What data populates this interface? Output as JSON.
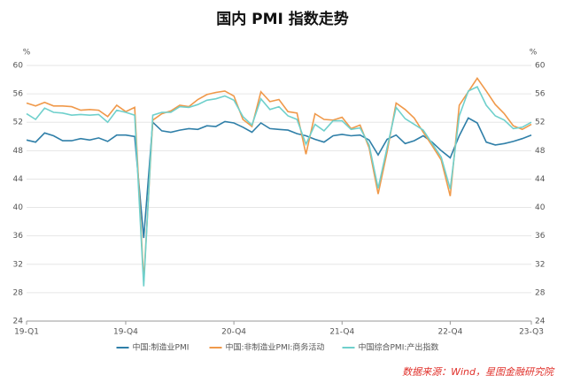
{
  "chart_data": {
    "type": "line",
    "title": "国内 PMI 指数走势",
    "y_unit": "%",
    "y2_unit": "%",
    "source": "数据来源：Wind，星图金融研究院",
    "categories": [
      "19-Q1",
      null,
      null,
      null,
      null,
      null,
      null,
      null,
      null,
      null,
      null,
      "19-Q4",
      null,
      null,
      null,
      null,
      null,
      null,
      null,
      null,
      null,
      null,
      null,
      "20-Q4",
      null,
      null,
      null,
      null,
      null,
      null,
      null,
      null,
      null,
      null,
      null,
      "21-Q4",
      null,
      null,
      null,
      null,
      null,
      null,
      null,
      null,
      null,
      null,
      null,
      "22-Q4",
      null,
      null,
      null,
      null,
      null,
      null,
      null,
      null,
      "23-Q3"
    ],
    "series": [
      {
        "name": "中国:制造业PMI",
        "color": "#2f7fa8",
        "values": [
          49.5,
          49.2,
          50.5,
          50.1,
          49.4,
          49.4,
          49.7,
          49.5,
          49.8,
          49.3,
          50.2,
          50.2,
          50.0,
          35.7,
          52.0,
          50.8,
          50.6,
          50.9,
          51.1,
          51.0,
          51.5,
          51.4,
          52.1,
          51.9,
          51.3,
          50.6,
          51.9,
          51.1,
          51.0,
          50.9,
          50.4,
          50.1,
          49.6,
          49.2,
          50.1,
          50.3,
          50.1,
          50.2,
          49.5,
          47.4,
          49.6,
          50.2,
          49.0,
          49.4,
          50.1,
          49.2,
          48.0,
          47.0,
          50.1,
          52.6,
          51.9,
          49.2,
          48.8,
          49.0,
          49.3,
          49.7,
          50.2
        ]
      },
      {
        "name": "中国:非制造业PMI:商务活动",
        "color": "#f0994a",
        "values": [
          54.7,
          54.3,
          54.8,
          54.3,
          54.3,
          54.2,
          53.7,
          53.8,
          53.7,
          52.8,
          54.4,
          53.5,
          54.1,
          29.6,
          52.3,
          53.2,
          53.6,
          54.4,
          54.2,
          55.2,
          55.9,
          56.2,
          56.4,
          55.7,
          52.4,
          51.4,
          56.3,
          54.9,
          55.2,
          53.5,
          53.3,
          47.5,
          53.2,
          52.4,
          52.3,
          52.7,
          51.1,
          51.6,
          48.4,
          41.9,
          47.8,
          54.7,
          53.8,
          52.6,
          50.6,
          48.7,
          46.7,
          41.6,
          54.4,
          56.3,
          58.2,
          56.4,
          54.5,
          53.2,
          51.5,
          51.0,
          51.7
        ]
      },
      {
        "name": "中国综合PMI:产出指数",
        "color": "#6fd0cc",
        "values": [
          53.2,
          52.4,
          54.0,
          53.4,
          53.3,
          53.0,
          53.1,
          53.0,
          53.1,
          52.0,
          53.7,
          53.4,
          53.0,
          28.9,
          53.0,
          53.4,
          53.4,
          54.2,
          54.1,
          54.5,
          55.1,
          55.3,
          55.7,
          55.1,
          52.8,
          51.6,
          55.3,
          53.8,
          54.2,
          52.9,
          52.4,
          48.9,
          51.7,
          50.8,
          52.2,
          52.2,
          51.0,
          51.2,
          48.8,
          42.7,
          48.4,
          54.1,
          52.5,
          51.7,
          50.9,
          49.0,
          47.1,
          42.6,
          52.9,
          56.4,
          57.0,
          54.4,
          52.9,
          52.3,
          51.1,
          51.3,
          52.0
        ]
      }
    ],
    "ylim": [
      24,
      60
    ],
    "yticks": [
      24,
      28,
      32,
      36,
      40,
      44,
      48,
      52,
      56,
      60
    ],
    "y2lim": [
      24,
      60
    ],
    "y2ticks": [
      24,
      28,
      32,
      36,
      40,
      44,
      48,
      52,
      56,
      60
    ],
    "grid": true
  }
}
